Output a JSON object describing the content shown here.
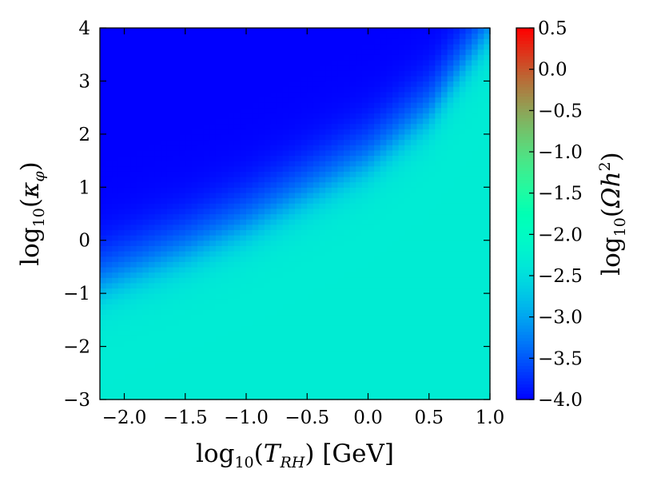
{
  "chart_data": {
    "type": "heatmap",
    "title": "",
    "xlabel": {
      "prefix": "log",
      "subscript": "10",
      "open": "(",
      "var": "T",
      "var_sub": "RH",
      "close": ")",
      "unit": " [GeV]"
    },
    "ylabel": {
      "prefix": "log",
      "subscript": "10",
      "open": "(",
      "var": "κ",
      "var_sub": "φ",
      "close": ")"
    },
    "colorbar_label": {
      "prefix": "log",
      "subscript": "10",
      "open": "(",
      "var": "Ωh",
      "sup": "2",
      "close": ")"
    },
    "xlim": [
      -2.2,
      1.0
    ],
    "ylim": [
      -3,
      4
    ],
    "x_ticks": [
      -2.0,
      -1.5,
      -1.0,
      -0.5,
      0.0,
      0.5,
      1.0
    ],
    "x_tick_labels": [
      "−2.0",
      "−1.5",
      "−1.0",
      "−0.5",
      "0.0",
      "0.5",
      "1.0"
    ],
    "y_ticks": [
      -3,
      -2,
      -1,
      0,
      1,
      2,
      3,
      4
    ],
    "y_tick_labels": [
      "−3",
      "−2",
      "−1",
      "0",
      "1",
      "2",
      "3",
      "4"
    ],
    "color_range": [
      -4.0,
      0.5
    ],
    "colorbar_ticks": [
      0.5,
      0.0,
      -0.5,
      -1.0,
      -1.5,
      -2.0,
      -2.5,
      -3.0,
      -3.5,
      -4.0
    ],
    "colorbar_tick_labels": [
      "0.5",
      "0.0",
      "−0.5",
      "−1.0",
      "−1.5",
      "−2.0",
      "−2.5",
      "−3.0",
      "−3.5",
      "−4.0"
    ],
    "colormap": "rainbow",
    "grid": false,
    "legend": "none",
    "z_transition": {
      "description_of_values": "log10(Omega h^2) over the (log10 T_RH, log10 kappa_phi) plane",
      "plateau_value": -2.3,
      "floor_value": -4.0,
      "boundary_points": [
        [
          -2.2,
          -0.6
        ],
        [
          -1.5,
          0.0
        ],
        [
          -1.0,
          0.5
        ],
        [
          -0.5,
          1.1
        ],
        [
          0.0,
          1.7
        ],
        [
          0.5,
          2.6
        ],
        [
          1.0,
          4.2
        ]
      ]
    }
  }
}
